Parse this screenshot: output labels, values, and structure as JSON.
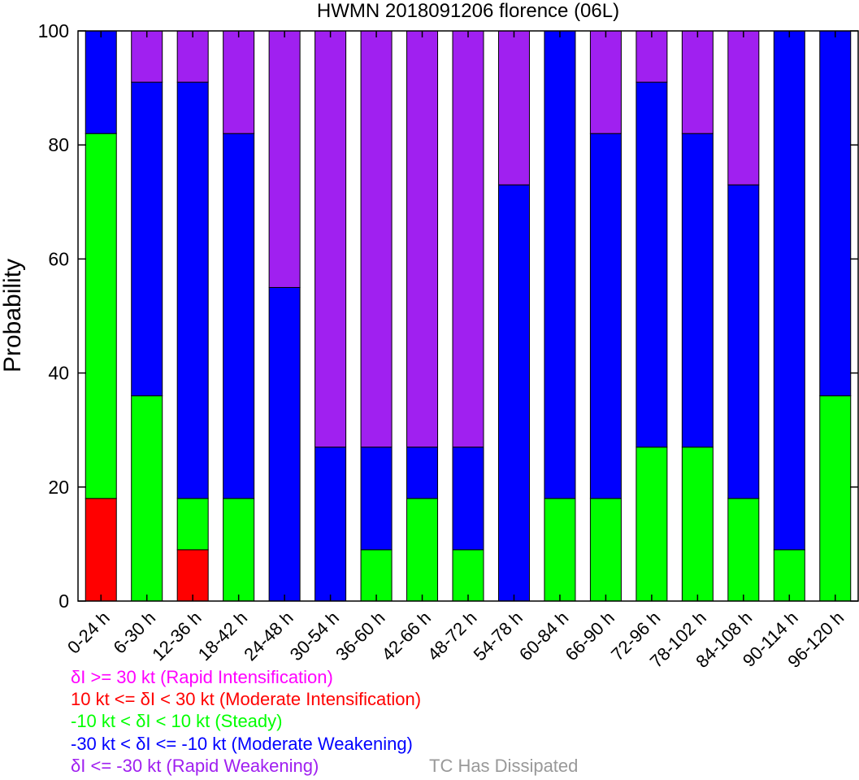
{
  "chart_data": {
    "type": "bar",
    "stacked": true,
    "title": "HWMN 2018091206 florence (06L)",
    "ylabel": "Probability",
    "ylim": [
      0,
      100
    ],
    "yticks": [
      0,
      20,
      40,
      60,
      80,
      100
    ],
    "categories": [
      "0-24 h",
      "6-30 h",
      "12-36 h",
      "18-42 h",
      "24-48 h",
      "30-54 h",
      "36-60 h",
      "42-66 h",
      "48-72 h",
      "54-78 h",
      "60-84 h",
      "66-90 h",
      "72-96 h",
      "78-102 h",
      "84-108 h",
      "90-114 h",
      "96-120 h"
    ],
    "series": [
      {
        "key": "ri",
        "color": "#ff00ff",
        "values": [
          0,
          0,
          0,
          0,
          0,
          0,
          0,
          0,
          0,
          0,
          0,
          0,
          0,
          0,
          0,
          0,
          0
        ]
      },
      {
        "key": "mi",
        "color": "#ff0000",
        "values": [
          18,
          0,
          9,
          0,
          0,
          0,
          0,
          0,
          0,
          0,
          0,
          0,
          0,
          0,
          0,
          0,
          0
        ]
      },
      {
        "key": "steady",
        "color": "#00ff00",
        "values": [
          64,
          36,
          9,
          18,
          0,
          0,
          9,
          18,
          9,
          0,
          18,
          18,
          27,
          27,
          18,
          9,
          36
        ]
      },
      {
        "key": "mw",
        "color": "#0000ff",
        "values": [
          18,
          55,
          73,
          64,
          55,
          27,
          18,
          9,
          18,
          73,
          82,
          64,
          64,
          55,
          55,
          91,
          64
        ]
      },
      {
        "key": "rw",
        "color": "#a020f0",
        "values": [
          0,
          9,
          9,
          18,
          45,
          73,
          73,
          73,
          73,
          27,
          0,
          18,
          9,
          18,
          27,
          0,
          0
        ]
      }
    ]
  },
  "legend": {
    "ri": {
      "label": "δI >= 30 kt (Rapid Intensification)",
      "color": "#ff00ff"
    },
    "mi": {
      "label": "10 kt <= δI < 30 kt (Moderate Intensification)",
      "color": "#ff0000"
    },
    "steady": {
      "label": "-10 kt < δI < 10 kt (Steady)",
      "color": "#00ff00"
    },
    "mw": {
      "label": "-30 kt < δI <= -10 kt (Moderate Weakening)",
      "color": "#0000ff"
    },
    "rw": {
      "label": "δI <= -30 kt (Rapid Weakening)",
      "color": "#a020f0"
    },
    "dissipated": {
      "label": "TC Has Dissipated",
      "color": "#999999"
    }
  }
}
